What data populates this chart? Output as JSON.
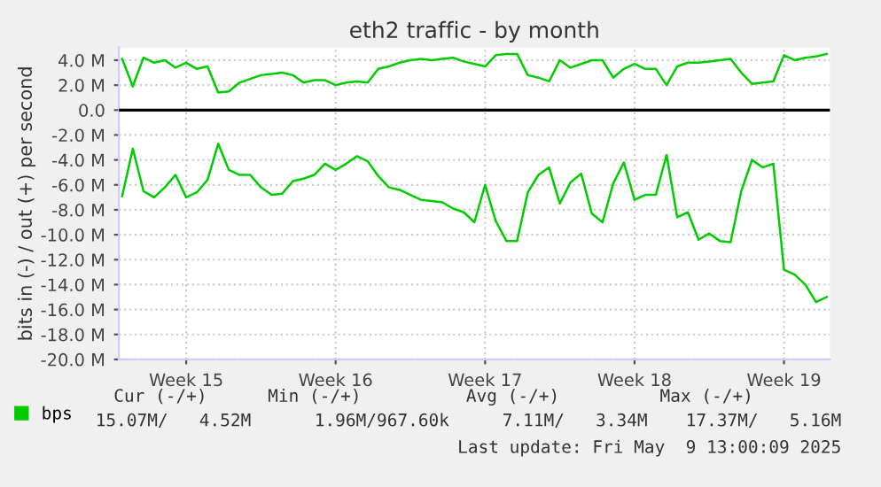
{
  "chart_data": {
    "type": "line",
    "title": "eth2 traffic - by month",
    "ylabel": "bits in (-) / out (+) per second",
    "categories": [
      null,
      null,
      null,
      null,
      null,
      null,
      "Week 15",
      null,
      null,
      null,
      null,
      null,
      null,
      null,
      null,
      null,
      null,
      null,
      null,
      null,
      "Week 16",
      null,
      null,
      null,
      null,
      null,
      null,
      null,
      null,
      null,
      null,
      null,
      null,
      null,
      "Week 17",
      null,
      null,
      null,
      null,
      null,
      null,
      null,
      null,
      null,
      null,
      null,
      null,
      null,
      "Week 18",
      null,
      null,
      null,
      null,
      null,
      null,
      null,
      null,
      null,
      null,
      null,
      null,
      null,
      "Week 19",
      null,
      null,
      null,
      null
    ],
    "ylim": [
      -20,
      5
    ],
    "yticks": [
      {
        "value": -20,
        "label": "-20.0 M"
      },
      {
        "value": -18,
        "label": "-18.0 M"
      },
      {
        "value": -16,
        "label": "-16.0 M"
      },
      {
        "value": -14,
        "label": "-14.0 M"
      },
      {
        "value": -12,
        "label": "-12.0 M"
      },
      {
        "value": -10,
        "label": "-10.0 M"
      },
      {
        "value": -8,
        "label": "-8.0 M"
      },
      {
        "value": -6,
        "label": "-6.0 M"
      },
      {
        "value": -4,
        "label": "-4.0 M"
      },
      {
        "value": -2,
        "label": "-2.0 M"
      },
      {
        "value": 0,
        "label": "0.0"
      },
      {
        "value": 2,
        "label": "2.0 M"
      },
      {
        "value": 4,
        "label": "4.0 M"
      }
    ],
    "grid": true,
    "legend": "bottom",
    "marker": "none",
    "line_style": "solid",
    "ref_lines": [
      {
        "axis": "y",
        "value": 0,
        "color": "#000000"
      }
    ],
    "series": [
      {
        "name": "bps",
        "color": "#00cc00",
        "values": [
          4.1,
          1.9,
          4.2,
          3.8,
          4.0,
          3.4,
          3.8,
          3.3,
          3.5,
          1.4,
          1.5,
          2.2,
          2.5,
          2.8,
          2.9,
          3.0,
          2.8,
          2.2,
          2.4,
          2.4,
          2.0,
          2.2,
          2.3,
          2.2,
          3.3,
          3.5,
          3.8,
          4.0,
          4.1,
          4.0,
          4.1,
          4.2,
          3.9,
          3.7,
          3.5,
          4.4,
          4.5,
          4.5,
          2.8,
          2.6,
          2.3,
          4.0,
          3.4,
          3.7,
          4.0,
          4.0,
          2.6,
          3.3,
          3.7,
          3.3,
          3.3,
          2.0,
          3.5,
          3.8,
          3.8,
          3.9,
          4.0,
          4.1,
          3.0,
          2.1,
          2.2,
          2.3,
          4.4,
          4.0,
          4.2,
          4.3,
          4.5
        ]
      },
      {
        "color": "#00cc00",
        "values": [
          -6.9,
          -3.1,
          -6.5,
          -7.0,
          -6.2,
          -5.2,
          -7.0,
          -6.6,
          -5.6,
          -2.7,
          -4.8,
          -5.2,
          -5.2,
          -6.2,
          -6.8,
          -6.7,
          -5.7,
          -5.5,
          -5.2,
          -4.3,
          -4.8,
          -4.3,
          -3.7,
          -4.1,
          -5.3,
          -6.2,
          -6.4,
          -6.8,
          -7.2,
          -7.3,
          -7.4,
          -7.9,
          -8.2,
          -9.0,
          -6.0,
          -8.9,
          -10.5,
          -10.5,
          -6.6,
          -5.2,
          -4.6,
          -7.5,
          -5.8,
          -5.1,
          -8.3,
          -9.0,
          -5.9,
          -4.2,
          -7.2,
          -6.8,
          -6.8,
          -3.6,
          -8.6,
          -8.2,
          -10.4,
          -9.9,
          -10.5,
          -10.6,
          -6.5,
          -4.0,
          -4.6,
          -4.3,
          -12.8,
          -13.2,
          -14.0,
          -15.4,
          -15.0
        ]
      }
    ],
    "annotations": [
      "Cur (-/+)",
      "Min (-/+)",
      "Avg (-/+)",
      "Max (-/+)",
      "15.07M/   4.52M",
      "1.96M/967.60k",
      "7.11M/   3.34M",
      "17.37M/   5.16M",
      "Last update: Fri May  9 13:00:09 2025"
    ]
  }
}
